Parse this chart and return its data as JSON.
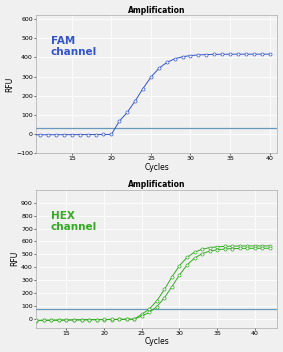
{
  "title": "Amplification",
  "xlabel": "Cycles",
  "ylabel": "RFU",
  "fam_color": "#3355cc",
  "hex_color": "#33aa22",
  "threshold_color_fam": "#6699bb",
  "threshold_color_hex": "#6699bb",
  "bg_color": "#f0f0f0",
  "outer_bg": "#f0f0f0",
  "grid_color": "#ffffff",
  "fam_label": "FAM\nchannel",
  "hex_label": "HEX\nchannel",
  "fam_xlim": [
    10.5,
    41
  ],
  "fam_ylim": [
    -100,
    620
  ],
  "hex_xlim": [
    11,
    43
  ],
  "hex_ylim": [
    -70,
    1000
  ],
  "fam_xticks": [
    15,
    20,
    25,
    30,
    35,
    40
  ],
  "hex_xticks": [
    15,
    20,
    25,
    30,
    35,
    40
  ],
  "fam_yticks": [
    -100,
    0,
    100,
    200,
    300,
    400,
    500,
    600
  ],
  "hex_yticks": [
    0,
    100,
    200,
    300,
    400,
    500,
    600,
    700,
    800,
    900
  ],
  "fam_threshold": 33,
  "hex_threshold": 75,
  "label_fontsize": 5.5,
  "title_fontsize": 5.5,
  "tick_fontsize": 4.5,
  "channel_label_fontsize": 7.5,
  "figsize": [
    2.83,
    3.52
  ],
  "dpi": 100
}
